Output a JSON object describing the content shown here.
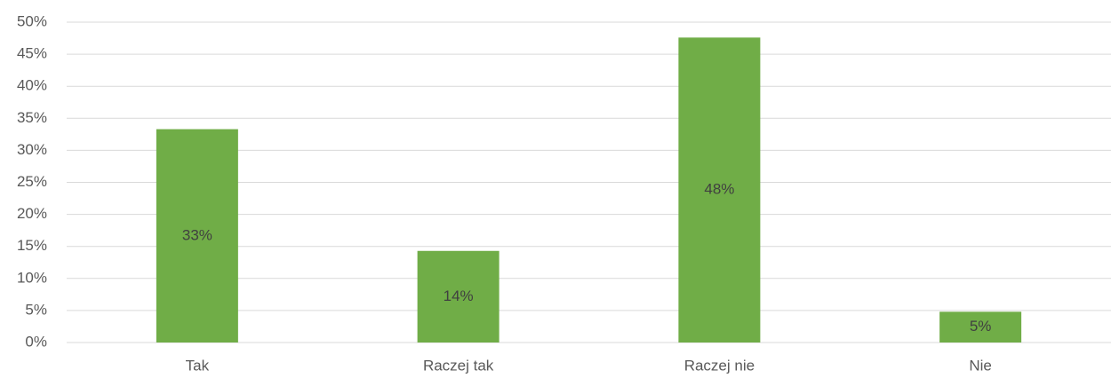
{
  "chart_data": {
    "type": "bar",
    "categories": [
      "Tak",
      "Raczej tak",
      "Raczej nie",
      "Nie"
    ],
    "values": [
      33.3,
      14.3,
      47.6,
      4.8
    ],
    "value_labels": [
      "33%",
      "14%",
      "48%",
      "5%"
    ],
    "color": "#70ad47",
    "ylim": [
      0,
      50
    ],
    "yticks": [
      {
        "value": 0,
        "label": "0%"
      },
      {
        "value": 5,
        "label": "5%"
      },
      {
        "value": 10,
        "label": "10%"
      },
      {
        "value": 15,
        "label": "15%"
      },
      {
        "value": 20,
        "label": "20%"
      },
      {
        "value": 25,
        "label": "25%"
      },
      {
        "value": 30,
        "label": "30%"
      },
      {
        "value": 35,
        "label": "35%"
      },
      {
        "value": 40,
        "label": "40%"
      },
      {
        "value": 45,
        "label": "45%"
      },
      {
        "value": 50,
        "label": "50%"
      }
    ],
    "grid": true
  }
}
